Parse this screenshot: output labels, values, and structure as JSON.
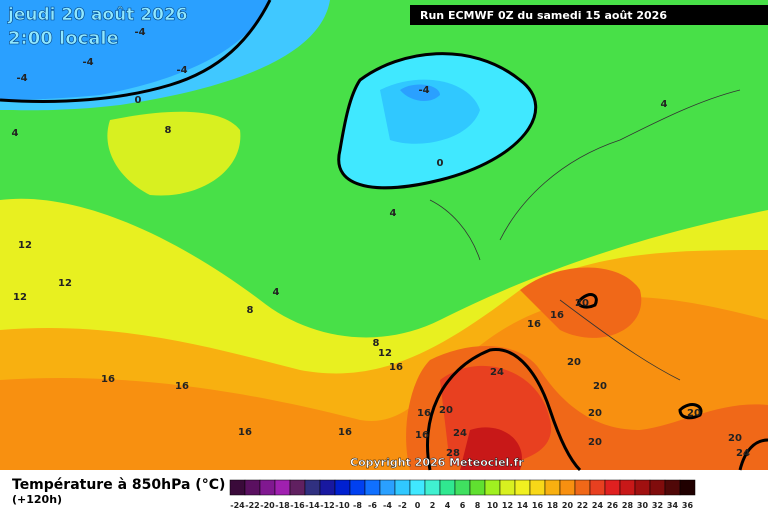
{
  "header": {
    "date": "jeudi 20 août 2026",
    "time": "2:00 locale",
    "run": "Run ECMWF 0Z du samedi 15 août 2026"
  },
  "copyright": "Copyright 2026 Meteociel.fr",
  "footer": {
    "title": "Température à 850hPa (°C)",
    "lead": "(+120h)"
  },
  "legend": {
    "ticks": [
      -24,
      -22,
      -20,
      -18,
      -16,
      -14,
      -12,
      -10,
      -8,
      -6,
      -4,
      -2,
      0,
      2,
      4,
      6,
      8,
      10,
      12,
      14,
      16,
      18,
      20,
      22,
      24,
      26,
      28,
      30,
      32,
      34,
      36
    ],
    "colors": [
      "#3a0a3a",
      "#5a1060",
      "#801890",
      "#a020b0",
      "#602060",
      "#303080",
      "#1818a0",
      "#0020d0",
      "#0040f0",
      "#1070ff",
      "#2aa0ff",
      "#30c8ff",
      "#40e8ff",
      "#40f0d0",
      "#30e890",
      "#40e060",
      "#60e030",
      "#a0f020",
      "#d8f020",
      "#f0f020",
      "#f8d818",
      "#f8b010",
      "#f89010",
      "#f06818",
      "#e84020",
      "#e02020",
      "#c81818",
      "#a01010",
      "#800c0c",
      "#500808",
      "#200000"
    ]
  },
  "contour_labels": [
    -4,
    -4,
    -4,
    -4,
    -4,
    0,
    0,
    4,
    4,
    8,
    4,
    12,
    12,
    12,
    4,
    8,
    8,
    12,
    16,
    16,
    16,
    20,
    20,
    20,
    20,
    20,
    20,
    20,
    24,
    24,
    24,
    20,
    16,
    16,
    28,
    16,
    16,
    16,
    16
  ]
}
